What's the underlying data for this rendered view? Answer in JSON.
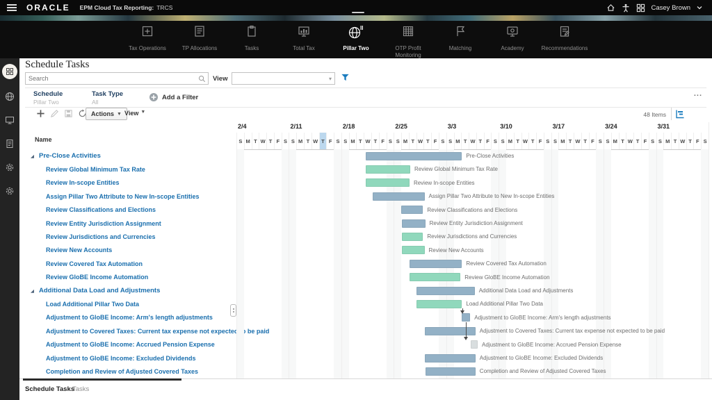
{
  "topbar": {
    "logo": "ORACLE",
    "app_title": "EPM Cloud Tax Reporting:",
    "app_code": "TRCS",
    "user_name": "Casey Brown"
  },
  "nav": {
    "items": [
      {
        "label": "Tax Operations",
        "icon": "tax-operations-icon",
        "active": false
      },
      {
        "label": "TP Allocations",
        "icon": "tp-allocations-icon",
        "active": false
      },
      {
        "label": "Tasks",
        "icon": "tasks-icon",
        "active": false
      },
      {
        "label": "Total Tax",
        "icon": "total-tax-icon",
        "active": false
      },
      {
        "label": "Pillar Two",
        "icon": "pillar-two-icon",
        "active": true
      },
      {
        "label": "OTP Profit Monitoring",
        "icon": "otp-profit-monitoring-icon",
        "active": false
      },
      {
        "label": "Matching",
        "icon": "matching-icon",
        "active": false
      },
      {
        "label": "Academy",
        "icon": "academy-icon",
        "active": false
      },
      {
        "label": "Recommendations",
        "icon": "recommendations-icon",
        "active": false
      }
    ]
  },
  "sidebar": {
    "icons": [
      "apps-avatar-icon",
      "globe-icon",
      "monitor-icon",
      "document-icon",
      "gear-icon",
      "gear-icon"
    ]
  },
  "page": {
    "title": "Schedule Tasks"
  },
  "filters": {
    "search_placeholder": "Search",
    "view_label": "View",
    "schedule_label": "Schedule",
    "schedule_value": "Pillar Two",
    "task_type_label": "Task Type",
    "task_type_value": "All",
    "add_filter_label": "Add a Filter",
    "more_menu": "..."
  },
  "toolbar": {
    "actions_label": "Actions",
    "view_label": "View",
    "items_count": "48 Items"
  },
  "gantt": {
    "name_header": "Name",
    "weeks": [
      "2/4",
      "2/11",
      "2/18",
      "2/25",
      "3/3",
      "3/10",
      "3/17",
      "3/24",
      "3/31"
    ],
    "day_letters": [
      "S",
      "M",
      "T",
      "W",
      "T",
      "F",
      "S"
    ],
    "today_day_index": 11,
    "colors": {
      "blue": "#93b1c6",
      "teal": "#90d8bc",
      "gray": "#d9dedf"
    },
    "tasks": [
      {
        "name": "Pre-Close Activities",
        "level": 0,
        "group": true,
        "color": "blue",
        "start": 17.3,
        "end": 30.1
      },
      {
        "name": "Review Global Minimum Tax Rate",
        "level": 1,
        "group": false,
        "color": "teal",
        "start": 17.3,
        "end": 23.2
      },
      {
        "name": "Review In-scope Entities",
        "level": 1,
        "group": false,
        "color": "teal",
        "start": 17.3,
        "end": 23.1
      },
      {
        "name": "Assign Pillar Two Attribute to New In-scope Entities",
        "level": 1,
        "group": false,
        "color": "blue",
        "start": 18.2,
        "end": 25.1
      },
      {
        "name": "Review Classifications and Elections",
        "level": 1,
        "group": false,
        "color": "blue",
        "start": 22.0,
        "end": 24.9
      },
      {
        "name": "Review Entity Jurisdiction Assignment",
        "level": 1,
        "group": false,
        "color": "blue",
        "start": 22.1,
        "end": 25.2
      },
      {
        "name": "Review Jurisdictions and Currencies",
        "level": 1,
        "group": false,
        "color": "teal",
        "start": 22.1,
        "end": 24.9
      },
      {
        "name": "Review New Accounts",
        "level": 1,
        "group": false,
        "color": "teal",
        "start": 22.1,
        "end": 25.1
      },
      {
        "name": "Review Covered Tax Automation",
        "level": 1,
        "group": false,
        "color": "blue",
        "start": 23.1,
        "end": 30.1
      },
      {
        "name": "Review GloBE Income Automation",
        "level": 1,
        "group": false,
        "color": "teal",
        "start": 23.1,
        "end": 29.9
      },
      {
        "name": "Additional Data Load and Adjustments",
        "level": 0,
        "group": true,
        "color": "blue",
        "start": 24.0,
        "end": 31.8
      },
      {
        "name": "Load Additional Pillar Two Data",
        "level": 1,
        "group": false,
        "color": "teal",
        "start": 24.0,
        "end": 30.1
      },
      {
        "name": "Adjustment to GloBE Income: Arm's length adjustments",
        "level": 1,
        "group": false,
        "color": "blue",
        "start": 30.1,
        "end": 31.2
      },
      {
        "name": "Adjustment to Covered Taxes: Current tax expense not expected to be paid",
        "level": 1,
        "group": false,
        "color": "blue",
        "start": 25.1,
        "end": 31.9
      },
      {
        "name": "Adjustment to GloBE Income: Accrued Pension Expense",
        "level": 1,
        "group": false,
        "color": "gray",
        "start": 31.3,
        "end": 32.2
      },
      {
        "name": "Adjustment to GloBE Income: Excluded Dividends",
        "level": 1,
        "group": false,
        "color": "blue",
        "start": 25.1,
        "end": 31.9
      },
      {
        "name": "Completion and Review of Adjusted Covered Taxes",
        "level": 1,
        "group": false,
        "color": "blue",
        "start": 25.2,
        "end": 31.9
      }
    ],
    "connectors": [
      {
        "from": 11,
        "to": 12,
        "day": 30.2
      },
      {
        "from": 12,
        "to": 14,
        "day": 30.65
      }
    ]
  },
  "footer": {
    "tabs": [
      {
        "label": "Schedule Tasks",
        "active": true
      },
      {
        "label": "Tasks",
        "active": false
      }
    ]
  }
}
